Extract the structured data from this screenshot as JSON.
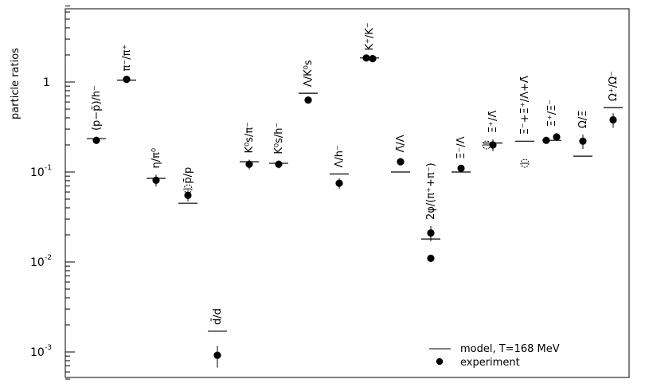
{
  "chart_data": {
    "type": "scatter",
    "ylabel": "particle ratios",
    "yscale": "log",
    "ylim": [
      0.00045,
      7.5
    ],
    "yticks": [
      {
        "value": 0.001,
        "base": "10",
        "exp": "-3"
      },
      {
        "value": 0.01,
        "base": "10",
        "exp": "-2"
      },
      {
        "value": 0.1,
        "base": "10",
        "exp": "-1"
      },
      {
        "value": 1,
        "base": "1",
        "exp": ""
      }
    ],
    "legend": {
      "position": "bottom-right",
      "model_label": "model, T=168 MeV",
      "experiment_label": "experiment"
    },
    "ratios": [
      {
        "label": "(p−p̄)/h⁻",
        "model": 0.235,
        "experiment": [
          {
            "value": 0.225,
            "err_lo": 0.02,
            "err_hi": 0.02
          }
        ]
      },
      {
        "label": "π⁻/π⁺",
        "model": 1.05,
        "experiment": [
          {
            "value": 1.07,
            "err_lo": 0.05,
            "err_hi": 0.05
          }
        ]
      },
      {
        "label": "η/π⁰",
        "model": 0.085,
        "experiment": [
          {
            "value": 0.081,
            "err_lo": 0.012,
            "err_hi": 0.012
          }
        ]
      },
      {
        "label": "p̄/p",
        "model": 0.045,
        "experiment": [
          {
            "value": 0.055,
            "err_lo": 0.008,
            "err_hi": 0.008
          }
        ]
      },
      {
        "label": "d̄/d",
        "model": 0.0017,
        "experiment": [
          {
            "value": 0.00092,
            "err_lo": 0.00025,
            "err_hi": 0.00025
          }
        ]
      },
      {
        "label": "K⁰s/π⁻",
        "model": 0.13,
        "experiment": [
          {
            "value": 0.122,
            "err_lo": 0.015,
            "err_hi": 0.015
          }
        ]
      },
      {
        "label": "K⁰s/h⁻",
        "model": 0.125,
        "experiment": [
          {
            "value": 0.122,
            "err_lo": 0.012,
            "err_hi": 0.012
          }
        ]
      },
      {
        "label": "Λ/K⁰s",
        "model": 0.75,
        "experiment": [
          {
            "value": 0.63,
            "err_lo": 0.05,
            "err_hi": 0.05
          }
        ]
      },
      {
        "label": "Λ/h⁻",
        "model": 0.095,
        "experiment": [
          {
            "value": 0.075,
            "err_lo": 0.01,
            "err_hi": 0.01
          }
        ]
      },
      {
        "label": "K⁺/K⁻",
        "model": 1.85,
        "experiment": [
          {
            "value": 1.85,
            "err_lo": 0.05,
            "err_hi": 0.05
          },
          {
            "value": 1.82,
            "err_lo": 0.05,
            "err_hi": 0.05
          }
        ]
      },
      {
        "label": "Λ̄/Λ",
        "model": 0.1,
        "experiment": [
          {
            "value": 0.13,
            "err_lo": 0.01,
            "err_hi": 0.01
          }
        ]
      },
      {
        "label": "2φ/(π⁺+π⁻)",
        "model": 0.018,
        "experiment": [
          {
            "value": 0.021,
            "err_lo": 0.004,
            "err_hi": 0.004
          },
          {
            "value": 0.011,
            "err_lo": 0.001,
            "err_hi": 0.001
          }
        ]
      },
      {
        "label": "Ξ⁻/Λ",
        "model": 0.1,
        "experiment": [
          {
            "value": 0.11,
            "err_lo": 0.008,
            "err_hi": 0.008
          }
        ]
      },
      {
        "label": "Ξ⁺/Λ̄",
        "model": 0.21,
        "experiment": [
          {
            "value": 0.2,
            "err_lo": 0.03,
            "err_hi": 0.03
          }
        ]
      },
      {
        "label": "Ξ⁻+Ξ⁺/Λ+Λ̄",
        "model": 0.22,
        "experiment": []
      },
      {
        "label": "Ξ⁺/Ξ⁻",
        "model": 0.225,
        "experiment": [
          {
            "value": 0.225,
            "err_lo": 0.02,
            "err_hi": 0.02
          },
          {
            "value": 0.245,
            "err_lo": 0.025,
            "err_hi": 0.025
          }
        ]
      },
      {
        "label": "Ω/Ξ",
        "model": 0.15,
        "experiment": [
          {
            "value": 0.22,
            "err_lo": 0.04,
            "err_hi": 0.04
          }
        ]
      },
      {
        "label": "Ω⁺/Ω⁻",
        "model": 0.52,
        "experiment": [
          {
            "value": 0.38,
            "err_lo": 0.07,
            "err_hi": 0.07
          }
        ]
      }
    ]
  }
}
